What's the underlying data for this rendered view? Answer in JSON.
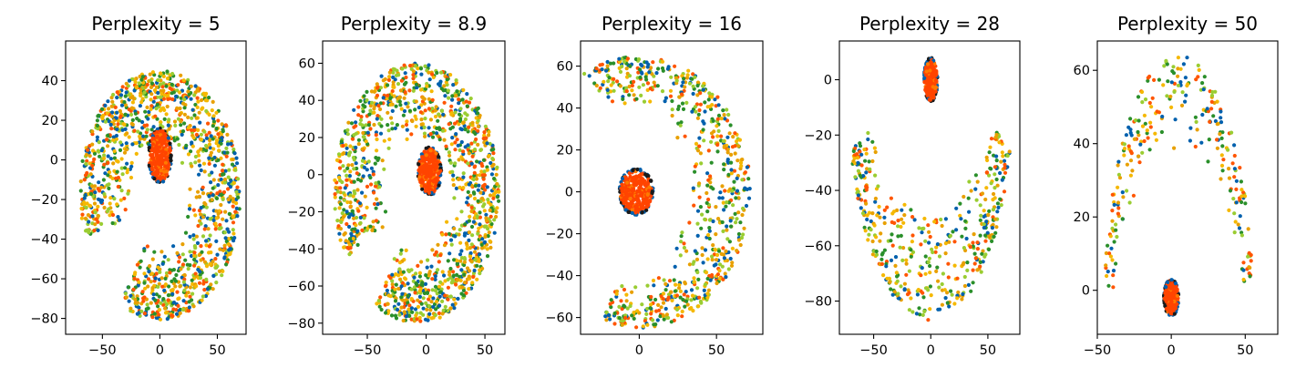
{
  "chart_data": [
    {
      "type": "scatter",
      "title": "Perplexity = 5",
      "xlabel": "",
      "ylabel": "",
      "xlim": [
        -82,
        75
      ],
      "ylim": [
        -88,
        60
      ],
      "xticks": [
        -50,
        0,
        50
      ],
      "yticks": [
        -80,
        -60,
        -40,
        -20,
        0,
        20,
        40
      ],
      "grid": false,
      "shape": "horseshoe",
      "cluster": {
        "center": [
          0,
          2
        ],
        "radius": [
          10,
          14
        ]
      },
      "arc": {
        "center": [
          0,
          -18
        ],
        "radius_outer": [
          70,
          63
        ],
        "radius_inner": [
          22,
          27
        ],
        "angle_range": [
          -120,
          200
        ]
      },
      "points": 1300
    },
    {
      "type": "scatter",
      "title": "Perplexity = 8.9",
      "xlabel": "",
      "ylabel": "",
      "xlim": [
        -88,
        67
      ],
      "ylim": [
        -86,
        72
      ],
      "xticks": [
        -50,
        0,
        50
      ],
      "yticks": [
        -80,
        -60,
        -40,
        -20,
        0,
        20,
        40,
        60
      ],
      "grid": false,
      "shape": "horseshoe",
      "cluster": {
        "center": [
          3,
          2
        ],
        "radius": [
          10,
          13
        ]
      },
      "arc": {
        "center": [
          -8,
          -10
        ],
        "radius_outer": [
          70,
          70
        ],
        "radius_inner": [
          26,
          30
        ],
        "angle_range": [
          -120,
          210
        ]
      },
      "points": 1300
    },
    {
      "type": "scatter",
      "title": "Perplexity = 16",
      "xlabel": "",
      "ylabel": "",
      "xlim": [
        -38,
        80
      ],
      "ylim": [
        -68,
        72
      ],
      "xticks": [
        0,
        50
      ],
      "yticks": [
        -60,
        -40,
        -20,
        0,
        20,
        40,
        60
      ],
      "grid": false,
      "shape": "crescent",
      "cluster": {
        "center": [
          -2,
          0
        ],
        "radius": [
          11,
          11
        ]
      },
      "arc": {
        "center": [
          0,
          0
        ],
        "radius_outer": [
          72,
          65
        ],
        "radius_inner": [
          30,
          42
        ],
        "angle_range": [
          -110,
          120
        ]
      },
      "points": 700
    },
    {
      "type": "scatter",
      "title": "Perplexity = 28",
      "xlabel": "",
      "ylabel": "",
      "xlim": [
        -80,
        78
      ],
      "ylim": [
        -92,
        14
      ],
      "xticks": [
        -50,
        0,
        50
      ],
      "yticks": [
        -80,
        -60,
        -40,
        -20,
        0
      ],
      "grid": false,
      "shape": "u-arc",
      "cluster": {
        "center": [
          0,
          0
        ],
        "radius": [
          6,
          8
        ]
      },
      "arc": {
        "center": [
          0,
          -5
        ],
        "radius_outer": [
          72,
          82
        ],
        "radius_inner": [
          54,
          40
        ],
        "angle_range": [
          195,
          345
        ]
      },
      "points": 450
    },
    {
      "type": "scatter",
      "title": "Perplexity = 50",
      "xlabel": "",
      "ylabel": "",
      "xlim": [
        -50,
        72
      ],
      "ylim": [
        -12,
        68
      ],
      "xticks": [
        -50,
        0,
        50
      ],
      "yticks": [
        0,
        20,
        40,
        60
      ],
      "grid": false,
      "shape": "arch",
      "cluster": {
        "center": [
          0,
          -2
        ],
        "radius": [
          5,
          5
        ]
      },
      "arc": {
        "center": [
          5,
          -4
        ],
        "radius_outer": [
          50,
          68
        ],
        "radius_inner": [
          42,
          40
        ],
        "angle_range": [
          5,
          175
        ]
      },
      "points": 260
    }
  ],
  "colors": {
    "palette": [
      "#0060ad",
      "#2a8f2a",
      "#ff5500",
      "#f5b800",
      "#9acd32",
      "#e8a000"
    ],
    "cluster": "#ff4400",
    "cluster_edge": "#1a1a1a"
  }
}
